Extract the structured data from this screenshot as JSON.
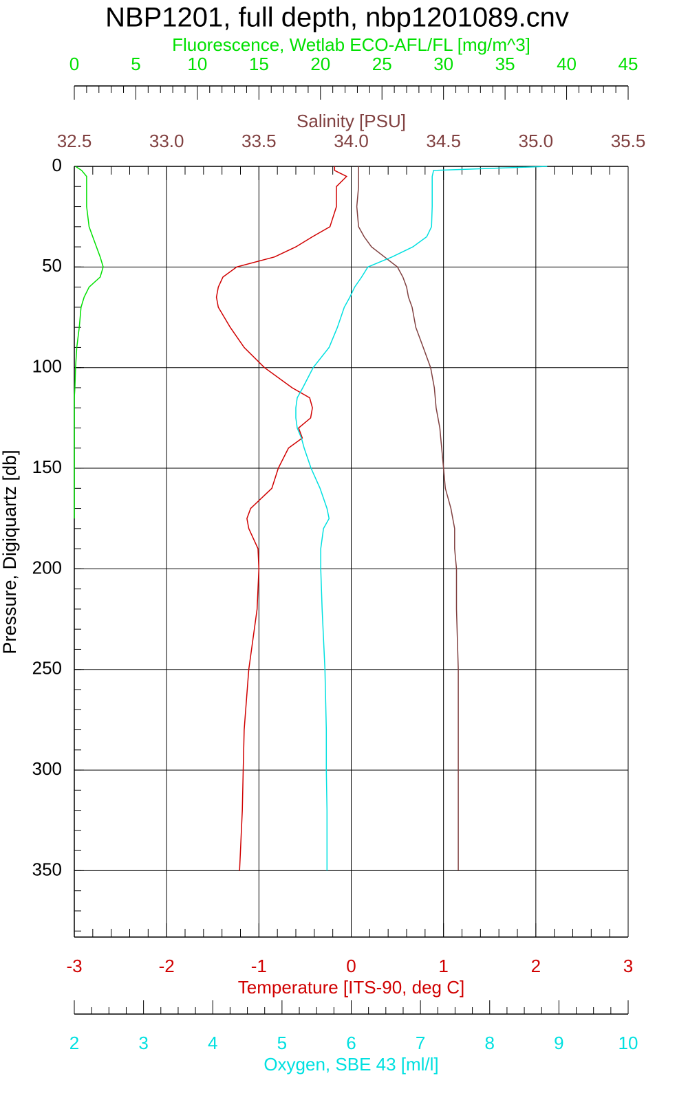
{
  "chart_data": {
    "type": "profile",
    "title": "NBP1201, full depth, nbp1201089.cnv",
    "y_label": "Pressure, Digiquartz [db]",
    "ylim": [
      0,
      383
    ],
    "yticks": [
      0,
      50,
      100,
      150,
      200,
      250,
      300,
      350
    ],
    "grid": true,
    "pressure": [
      0,
      2,
      5,
      10,
      20,
      30,
      35,
      40,
      45,
      50,
      55,
      60,
      65,
      70,
      80,
      90,
      100,
      110,
      115,
      120,
      125,
      130,
      135,
      140,
      150,
      160,
      170,
      175,
      180,
      190,
      200,
      220,
      250,
      280,
      300,
      320,
      350
    ],
    "series": [
      {
        "name": "Fluorescence, Wetlab ECO-AFL/FL [mg/m^3]",
        "color": "#00e000",
        "xlim": [
          0,
          45
        ],
        "xticks": [
          0,
          5,
          10,
          15,
          20,
          25,
          30,
          35,
          40,
          45
        ],
        "values": [
          0.1,
          0.6,
          1.0,
          1.0,
          1.0,
          1.2,
          1.5,
          1.8,
          2.1,
          2.35,
          2.1,
          1.2,
          0.8,
          0.55,
          0.4,
          0.2,
          0.1,
          0.05,
          0,
          0,
          0,
          0,
          0,
          0,
          0,
          0,
          0,
          0,
          null,
          null,
          null,
          null,
          null,
          null,
          null,
          null,
          null
        ]
      },
      {
        "name": "Salinity [PSU]",
        "color": "#804040",
        "xlim": [
          32.5,
          35.5
        ],
        "xticks": [
          32.5,
          {
            "value": 33,
            "label": "33.0"
          },
          33.5,
          {
            "value": 34,
            "label": "34.0"
          },
          34.5,
          {
            "value": 35,
            "label": "35.0"
          },
          35.5
        ],
        "values": [
          34.04,
          34.04,
          34.04,
          34.04,
          34.03,
          34.04,
          34.07,
          34.11,
          34.18,
          34.25,
          34.28,
          34.3,
          34.31,
          34.33,
          34.35,
          34.39,
          34.43,
          34.45,
          34.455,
          34.46,
          34.47,
          34.48,
          34.485,
          34.49,
          34.5,
          34.51,
          34.54,
          34.55,
          34.56,
          34.56,
          34.57,
          34.57,
          34.58,
          34.58,
          34.58,
          34.58,
          34.58
        ]
      },
      {
        "name": "Temperature [ITS-90, deg C]",
        "color": "#d00000",
        "xlim": [
          -3,
          3
        ],
        "xticks": [
          -3,
          -2,
          -1,
          0,
          1,
          2,
          3
        ],
        "values": [
          -0.18,
          -0.18,
          -0.05,
          -0.16,
          -0.16,
          -0.23,
          -0.42,
          -0.6,
          -0.83,
          -1.24,
          -1.39,
          -1.44,
          -1.46,
          -1.44,
          -1.31,
          -1.16,
          -0.94,
          -0.64,
          -0.45,
          -0.42,
          -0.44,
          -0.57,
          -0.53,
          -0.68,
          -0.79,
          -0.86,
          -1.09,
          -1.13,
          -1.11,
          -1.01,
          -1.0,
          -1.02,
          -1.11,
          -1.16,
          -1.17,
          -1.18,
          -1.21
        ]
      },
      {
        "name": "Oxygen, SBE 43 [ml/l]",
        "color": "#00e0e0",
        "xlim": [
          2,
          10
        ],
        "xticks": [
          2,
          3,
          4,
          5,
          6,
          7,
          8,
          9,
          10
        ],
        "values": [
          8.83,
          7.19,
          7.17,
          7.17,
          7.17,
          7.16,
          7.09,
          6.89,
          6.59,
          6.24,
          6.15,
          6.05,
          5.98,
          5.9,
          5.8,
          5.68,
          5.45,
          5.3,
          5.22,
          5.2,
          5.2,
          5.22,
          5.28,
          5.32,
          5.42,
          5.55,
          5.65,
          5.68,
          5.6,
          5.56,
          5.56,
          5.58,
          5.62,
          5.64,
          5.64,
          5.65,
          5.65
        ]
      }
    ]
  }
}
